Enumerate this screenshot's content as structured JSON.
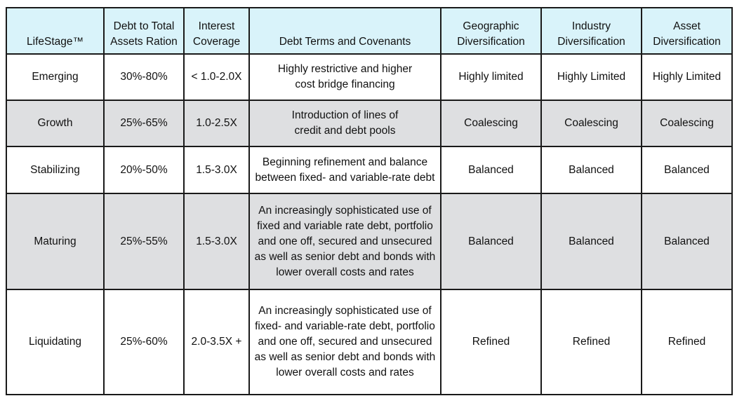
{
  "headers": [
    "LifeStage™",
    "Debt to Total\nAssets Ration",
    "Interest\nCoverage",
    "Debt Terms and Covenants",
    "Geographic\nDiversification",
    "Industry\nDiversification",
    "Asset\nDiversification"
  ],
  "rows": [
    {
      "stage": "Emerging",
      "debt_ratio": "30%-80%",
      "coverage": "< 1.0-2.0X",
      "terms": "Highly restrictive and higher\ncost bridge financing",
      "geographic": "Highly limited",
      "industry": "Highly Limited",
      "asset": "Highly Limited"
    },
    {
      "stage": "Growth",
      "debt_ratio": "25%-65%",
      "coverage": "1.0-2.5X",
      "terms": "Introduction of lines of\ncredit and debt pools",
      "geographic": "Coalescing",
      "industry": "Coalescing",
      "asset": "Coalescing"
    },
    {
      "stage": "Stabilizing",
      "debt_ratio": "20%-50%",
      "coverage": "1.5-3.0X",
      "terms": "Beginning refinement and balance\nbetween fixed- and variable-rate debt",
      "geographic": "Balanced",
      "industry": "Balanced",
      "asset": "Balanced"
    },
    {
      "stage": "Maturing",
      "debt_ratio": "25%-55%",
      "coverage": "1.5-3.0X",
      "terms": "An increasingly sophisticated use of\nfixed and variable rate debt, portfolio\nand one off, secured and unsecured\nas well as senior debt and bonds with\nlower overall costs and rates",
      "geographic": "Balanced",
      "industry": "Balanced",
      "asset": "Balanced"
    },
    {
      "stage": "Liquidating",
      "debt_ratio": "25%-60%",
      "coverage": "2.0-3.5X +",
      "terms": "An increasingly sophisticated use of\nfixed- and variable-rate debt, portfolio\nand one off, secured and unsecured\nas well as senior debt and bonds with\nlower overall costs and rates",
      "geographic": "Refined",
      "industry": "Refined",
      "asset": "Refined"
    }
  ],
  "colors": {
    "header_bg": "#d9f3fa",
    "alt_row_bg": "#dedfe1",
    "border": "#1a1a1a"
  }
}
